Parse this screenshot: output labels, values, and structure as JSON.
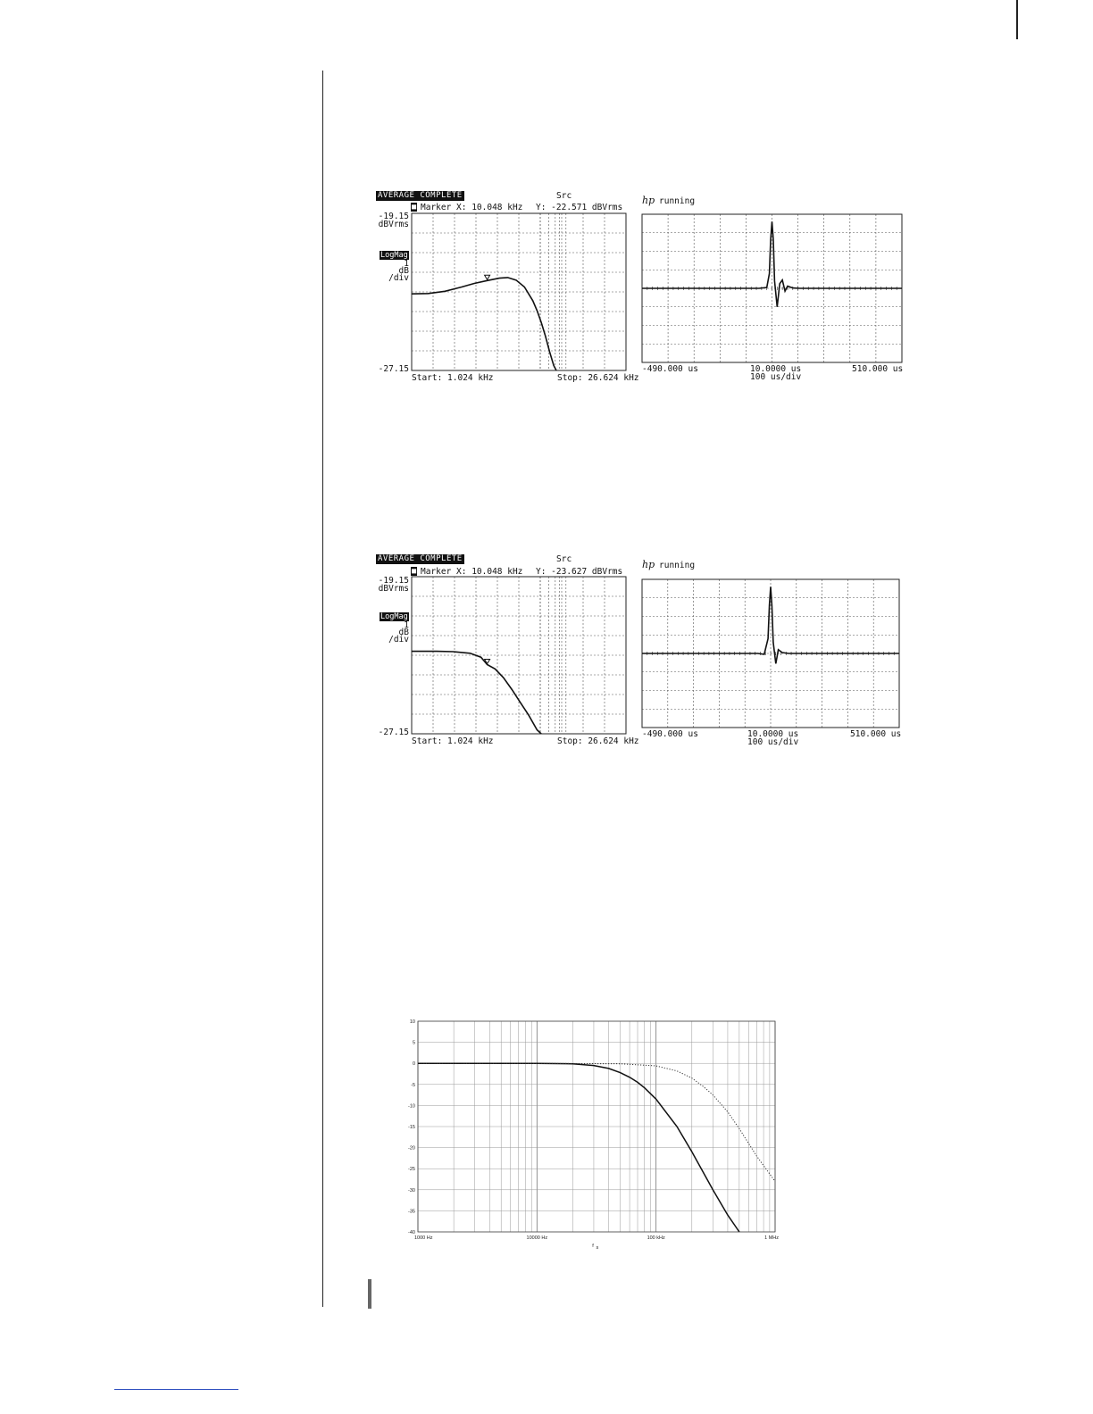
{
  "panels": [
    {
      "status": "AVERAGE COMPLETE",
      "source": "Src",
      "marker_x": "Marker X: 10.048 kHz",
      "marker_y": "Y: -22.571 dBVrms",
      "ytop": "-19.15",
      "yunit": "dBVrms",
      "scale_badge": "LogMag",
      "scale_a": "1",
      "scale_b": "dB",
      "scale_c": "/div",
      "ybottom": "-27.15",
      "start": "Start: 1.024 kHz",
      "stop": "Stop: 26.624 kHz",
      "hp_logo": "hp",
      "hp_state": "running",
      "t_left": "-490.000 us",
      "t_center": "10.0000 us",
      "t_right": "510.000 us",
      "t_div": "100  us/div"
    },
    {
      "status": "AVERAGE COMPLETE",
      "source": "Src",
      "marker_x": "Marker X: 10.048 kHz",
      "marker_y": "Y: -23.627 dBVrms",
      "ytop": "-19.15",
      "yunit": "dBVrms",
      "scale_badge": "LogMag",
      "scale_a": "1",
      "scale_b": "dB",
      "scale_c": "/div",
      "ybottom": "-27.15",
      "start": "Start: 1.024 kHz",
      "stop": "Stop: 26.624 kHz",
      "hp_logo": "hp",
      "hp_state": "running",
      "t_left": "-490.000 us",
      "t_center": "10.0000 us",
      "t_right": "510.000 us",
      "t_div": "100  us/div"
    }
  ],
  "chart_data": [
    {
      "type": "line",
      "xscale": "linear",
      "xlim_khz": [
        1.024,
        26.624
      ],
      "ylim": [
        -27.15,
        -19.15
      ],
      "ylabel": "dBVrms",
      "marker": {
        "x_khz": 10.048,
        "y": -22.571
      },
      "series": [
        {
          "x_khz": [
            1.024,
            3,
            5,
            7,
            8.5,
            10.048,
            11.5,
            12.5,
            13.5,
            14.5,
            15.5,
            16.0,
            16.5,
            17.0,
            17.5,
            18.0,
            18.3
          ],
          "values": [
            -23.25,
            -23.23,
            -23.12,
            -22.9,
            -22.72,
            -22.571,
            -22.45,
            -22.42,
            -22.55,
            -22.9,
            -23.6,
            -24.1,
            -24.7,
            -25.4,
            -26.2,
            -26.9,
            -27.15
          ]
        }
      ]
    },
    {
      "type": "line",
      "xlim_us": [
        -490,
        510
      ],
      "t_per_div": 100,
      "series": [
        {
          "t_us": [
            -490,
            -40,
            -10,
            0,
            5,
            10,
            15,
            20,
            30,
            40,
            50,
            60,
            70,
            90,
            120,
            510
          ],
          "values": [
            0,
            0,
            0.05,
            0.8,
            2.6,
            3.6,
            2.6,
            0.4,
            -1.0,
            0.25,
            0.45,
            -0.15,
            0.12,
            0.02,
            0,
            0
          ]
        }
      ]
    },
    {
      "type": "line",
      "xscale": "linear",
      "xlim_khz": [
        1.024,
        26.624
      ],
      "ylim": [
        -27.15,
        -19.15
      ],
      "ylabel": "dBVrms",
      "marker": {
        "x_khz": 10.048,
        "y": -23.627
      },
      "series": [
        {
          "x_khz": [
            1.024,
            4,
            6,
            8,
            9.3,
            10.048,
            11.0,
            12.0,
            13.0,
            14.0,
            15.0,
            16.0,
            16.5
          ],
          "values": [
            -22.95,
            -22.95,
            -22.97,
            -23.05,
            -23.25,
            -23.627,
            -23.85,
            -24.3,
            -24.9,
            -25.55,
            -26.2,
            -26.95,
            -27.15
          ]
        }
      ]
    },
    {
      "type": "line",
      "xlim_us": [
        -490,
        510
      ],
      "t_per_div": 100,
      "series": [
        {
          "t_us": [
            -490,
            -40,
            -15,
            0,
            5,
            10,
            15,
            20,
            30,
            40,
            55,
            80,
            510
          ],
          "values": [
            0,
            0,
            -0.05,
            0.8,
            2.6,
            3.6,
            2.6,
            0.6,
            -0.55,
            0.2,
            0.05,
            0,
            0
          ]
        }
      ]
    },
    {
      "type": "line",
      "xscale": "log",
      "xlim_hz": [
        1000,
        1000000
      ],
      "ylim": [
        -40,
        10
      ],
      "xlabel": "f",
      "xlabel_sub": "s",
      "x_tick_labels": [
        "1000 Hz",
        "10000 Hz",
        "100 kHz",
        "1 MHz"
      ],
      "y_ticks": [
        10,
        5,
        0,
        -5,
        -10,
        -15,
        -20,
        -25,
        -30,
        -35,
        -40
      ],
      "series": [
        {
          "style": "solid",
          "x_hz": [
            1000,
            10000,
            20000,
            30000,
            40000,
            50000,
            60000,
            70000,
            80000,
            100000,
            150000,
            200000,
            300000,
            400000,
            500000
          ],
          "values": [
            0,
            0,
            -0.1,
            -0.5,
            -1.2,
            -2.2,
            -3.3,
            -4.5,
            -5.8,
            -8.5,
            -15,
            -21,
            -30,
            -36,
            -40
          ]
        },
        {
          "style": "dotted",
          "x_hz": [
            1000,
            10000,
            50000,
            100000,
            150000,
            200000,
            250000,
            300000,
            400000,
            500000,
            700000,
            1000000
          ],
          "values": [
            0,
            0,
            -0.1,
            -0.6,
            -1.8,
            -3.5,
            -5.5,
            -7.5,
            -11.5,
            -15.5,
            -22,
            -28
          ]
        }
      ]
    }
  ]
}
